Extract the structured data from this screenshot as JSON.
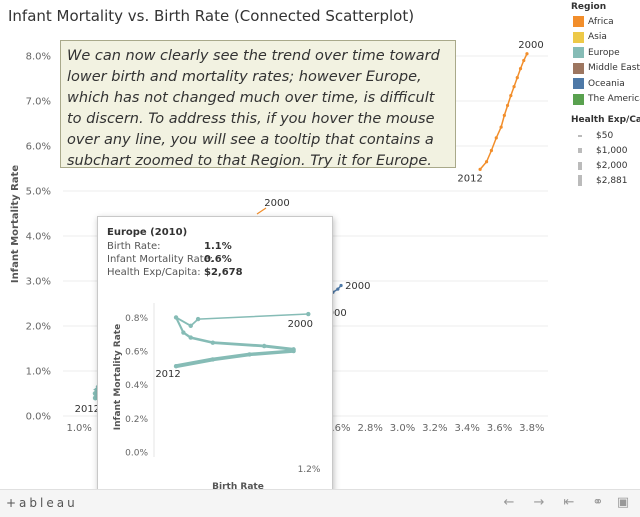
{
  "title": "Infant Mortality vs. Birth Rate (Connected Scatterplot)",
  "annotation": "We can now clearly see the trend over time toward lower birth and mortality rates; however Europe, which has not changed much over time, is difficult to discern. To address this, if you hover the mouse over any line, you will see a tooltip that contains a subchart zoomed to that Region. Try it for Europe.",
  "legend": {
    "region_title": "Region",
    "regions": [
      {
        "label": "Africa",
        "color": "#f28e2b"
      },
      {
        "label": "Asia",
        "color": "#edc948"
      },
      {
        "label": "Europe",
        "color": "#86bcb6"
      },
      {
        "label": "Middle East",
        "color": "#9d7660"
      },
      {
        "label": "Oceania",
        "color": "#4e79a7"
      },
      {
        "label": "The Americas",
        "color": "#59a14f"
      }
    ],
    "size_title": "Health Exp/Capita",
    "sizes": [
      "$50",
      "$1,000",
      "$2,000",
      "$2,881"
    ]
  },
  "chart_data": [
    {
      "type": "scatter",
      "title": "Infant Mortality vs. Birth Rate (Connected Scatterplot)",
      "xlabel": "",
      "ylabel": "Infant Mortality Rate",
      "xlim": [
        0.009,
        0.039
      ],
      "ylim": [
        0.0,
        0.084
      ],
      "x_ticks": [
        "1.0%",
        "1.2%",
        "2.6%",
        "2.8%",
        "3.0%",
        "3.2%",
        "3.4%",
        "3.6%",
        "3.8%"
      ],
      "y_ticks": [
        "0.0%",
        "1.0%",
        "2.0%",
        "3.0%",
        "4.0%",
        "5.0%",
        "6.0%",
        "7.0%",
        "8.0%"
      ],
      "series": [
        {
          "name": "Africa",
          "color": "#f28e2b",
          "x": [
            0.0348,
            0.0352,
            0.0355,
            0.0358,
            0.0361,
            0.0363,
            0.0365,
            0.0367,
            0.0369,
            0.0371,
            0.0373,
            0.0375,
            0.0377
          ],
          "y": [
            0.0548,
            0.0565,
            0.059,
            0.0618,
            0.0642,
            0.0668,
            0.069,
            0.0712,
            0.0732,
            0.0752,
            0.0772,
            0.079,
            0.0805
          ],
          "labels": [
            {
              "text": "2012",
              "index": 0
            },
            {
              "text": "2000",
              "index": 12
            }
          ]
        },
        {
          "name": "Oceania",
          "color": "#4e79a7",
          "x": [
            0.0254,
            0.0257,
            0.026,
            0.0262
          ],
          "y": [
            0.0268,
            0.0275,
            0.0282,
            0.029
          ],
          "labels": [
            {
              "text": "2000",
              "index": 3
            }
          ]
        },
        {
          "name": "Europe",
          "color": "#86bcb6",
          "x": [
            0.011,
            0.0111,
            0.011,
            0.0112,
            0.0111,
            0.0113,
            0.0112,
            0.0114,
            0.0113,
            0.0115,
            0.0114,
            0.0116,
            0.0117
          ],
          "y": [
            0.004,
            0.0045,
            0.005,
            0.0055,
            0.0058,
            0.0061,
            0.0065,
            0.007,
            0.0075,
            0.008,
            0.0083,
            0.0086,
            0.009
          ],
          "labels": [
            {
              "text": "2012",
              "index": 0
            }
          ]
        }
      ],
      "annotations": [
        "2000",
        "2000",
        "2012",
        "2000",
        "2012"
      ]
    },
    {
      "type": "line",
      "title": "Europe (2010)",
      "xlabel": "Birth Rate",
      "ylabel": "Infant Mortality Rate",
      "xlim": [
        0.0098,
        0.0121
      ],
      "ylim": [
        0.0,
        0.0085
      ],
      "x_ticks": [
        "1.2%"
      ],
      "y_ticks": [
        "0.0%",
        "0.2%",
        "0.4%",
        "0.6%",
        "0.8%"
      ],
      "series": [
        {
          "name": "Europe",
          "color": "#86bcb6",
          "x": [
            0.0119,
            0.0104,
            0.0103,
            0.0101,
            0.0102,
            0.0103,
            0.0106,
            0.0113,
            0.0117,
            0.0117,
            0.0111,
            0.0106,
            0.0101
          ],
          "y": [
            0.0082,
            0.0079,
            0.0075,
            0.008,
            0.0071,
            0.0068,
            0.0065,
            0.0063,
            0.0061,
            0.006,
            0.0058,
            0.0055,
            0.0051
          ],
          "labels": [
            {
              "text": "2000",
              "index": 0
            },
            {
              "text": "2012",
              "index": 12
            }
          ]
        }
      ]
    }
  ],
  "tooltip": {
    "header": "Europe (2010)",
    "rows": [
      {
        "label": "Birth Rate:",
        "value": "1.1%"
      },
      {
        "label": "Infant Mortality Rate:",
        "value": "0.6%"
      },
      {
        "label": "Health Exp/Capita:",
        "value": "$2,678"
      }
    ]
  },
  "toolbar": {
    "logo": "+ableau",
    "undo_icon": "undo-icon",
    "redo_icon": "redo-icon",
    "revert_icon": "revert-icon",
    "share_icon": "share-icon",
    "fullscreen_icon": "fullscreen-icon"
  }
}
